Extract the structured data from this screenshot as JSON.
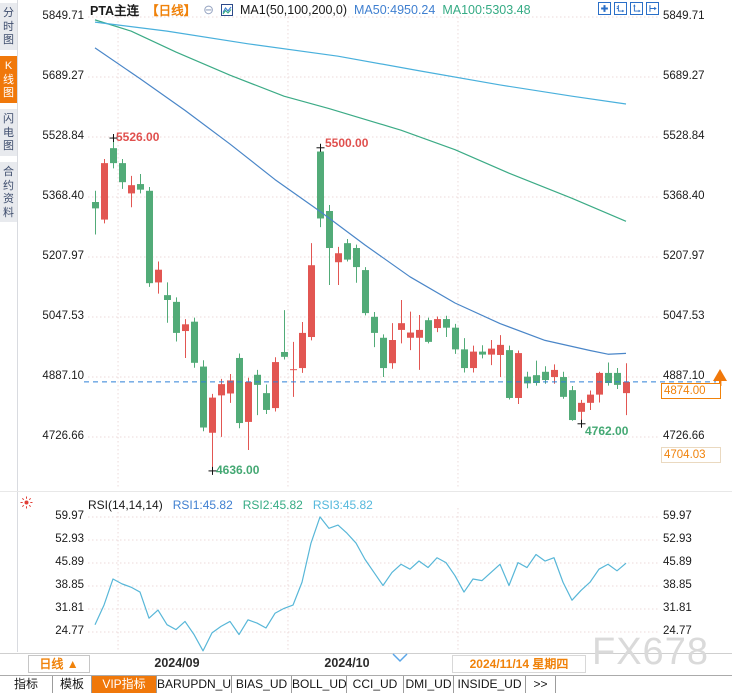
{
  "app": {
    "watermark": "FX678"
  },
  "header": {
    "symbol": "PTA主连",
    "period_tag": "【日线】",
    "collapse_icon": "⊖",
    "ma_group_label": "MA1(50,100,200,0)",
    "ma50_label": "MA50:4950.24",
    "ma100_label": "MA100:5303.48",
    "toolbar_icons": [
      "move-chart-icon",
      "axis-scale-icon",
      "axis-autofit-icon",
      "pan-right-icon"
    ]
  },
  "sidebar": {
    "items": [
      {
        "label": "分时图",
        "active": false
      },
      {
        "label": "K线图",
        "active": true
      },
      {
        "label": "闪电图",
        "active": false
      },
      {
        "label": "合约资料",
        "active": false
      }
    ]
  },
  "colors": {
    "accent_orange": "#f0780a",
    "up_candle": "#e25652",
    "down_candle": "#52ab78",
    "ma50": "#4a86c8",
    "ma100": "#3cab86",
    "ma200": "#49b0dc",
    "rsi_line": "#58b7d8",
    "price_line": "#2f80d8",
    "grid": "#ecdada",
    "annotation_red": "#e0504e",
    "annotation_green": "#44a873"
  },
  "main_chart": {
    "y_ticks": [
      "5849.71",
      "5689.27",
      "5528.84",
      "5368.40",
      "5207.97",
      "5047.53",
      "4887.10",
      "4726.66"
    ],
    "annotations": {
      "high1": "5526.00",
      "high2": "5500.00",
      "low1": "4636.00",
      "low2": "4762.00"
    },
    "price_tag": "4874.00",
    "secondary_tag": "4704.03"
  },
  "rsi_panel": {
    "title": "RSI(14,14,14)",
    "rsi1_label": "RSI1:45.82",
    "rsi2_label": "RSI2:45.82",
    "rsi3_label": "RSI3:45.82",
    "y_ticks": [
      "59.97",
      "52.93",
      "45.89",
      "38.85",
      "31.81",
      "24.77"
    ]
  },
  "bottom": {
    "period_selector": "日线 ▲",
    "date_labels": [
      "2024/09",
      "2024/10"
    ],
    "current_date": "2024/11/14 星期四",
    "tabs": [
      {
        "label": "指标",
        "active": false
      },
      {
        "label": "模板",
        "active": false
      },
      {
        "label": "VIP指标",
        "active": true
      },
      {
        "label": "BARUPDN_UD",
        "active": false
      },
      {
        "label": "BIAS_UD",
        "active": false
      },
      {
        "label": "BOLL_UD",
        "active": false
      },
      {
        "label": "CCI_UD",
        "active": false
      },
      {
        "label": "DMI_UD",
        "active": false
      },
      {
        "label": "INSIDE_UD",
        "active": false
      },
      {
        "label": ">>",
        "active": false
      }
    ]
  },
  "chart_data": [
    {
      "type": "candlestick",
      "title": "PTA主连 日线",
      "period": "日线",
      "y_ticks": [
        5849.71,
        5689.27,
        5528.84,
        5368.4,
        5207.97,
        5047.53,
        4887.1,
        4726.66
      ],
      "ylim": [
        4585,
        5850
      ],
      "current_price": 4874.0,
      "secondary_price": 4704.03,
      "month_boundary_indexes": [
        2.56,
        21.44,
        40.33
      ],
      "ohlc": [
        [
          5355,
          5385,
          5268,
          5338
        ],
        [
          5308,
          5470,
          5298,
          5459
        ],
        [
          5499,
          5526,
          5445,
          5459
        ],
        [
          5459,
          5470,
          5390,
          5408
        ],
        [
          5378,
          5425,
          5341,
          5400
        ],
        [
          5403,
          5430,
          5378,
          5388
        ],
        [
          5385,
          5395,
          5128,
          5138
        ],
        [
          5140,
          5196,
          5110,
          5174
        ],
        [
          5106,
          5140,
          5032,
          5093
        ],
        [
          5088,
          5100,
          4982,
          5005
        ],
        [
          5010,
          5042,
          4938,
          5028
        ],
        [
          5035,
          5046,
          4912,
          4925
        ],
        [
          4915,
          4932,
          4742,
          4752
        ],
        [
          4738,
          4842,
          4636,
          4832
        ],
        [
          4838,
          4882,
          4727,
          4868
        ],
        [
          4843,
          4895,
          4818,
          4878
        ],
        [
          4938,
          4950,
          4750,
          4764
        ],
        [
          4767,
          4885,
          4692,
          4874
        ],
        [
          4893,
          4906,
          4785,
          4866
        ],
        [
          4844,
          4867,
          4788,
          4799
        ],
        [
          4804,
          4940,
          4795,
          4927
        ],
        [
          4954,
          5066,
          4934,
          4941
        ],
        [
          4906,
          4981,
          4834,
          4908
        ],
        [
          4911,
          5034,
          4898,
          5005
        ],
        [
          4994,
          5245,
          4985,
          5186
        ],
        [
          5490,
          5500,
          5288,
          5311
        ],
        [
          5331,
          5347,
          5133,
          5232
        ],
        [
          5194,
          5235,
          5133,
          5218
        ],
        [
          5245,
          5256,
          5196,
          5201
        ],
        [
          5232,
          5241,
          5139,
          5181
        ],
        [
          5173,
          5181,
          5052,
          5058
        ],
        [
          5048,
          5061,
          4967,
          5005
        ],
        [
          4992,
          5001,
          4887,
          4911
        ],
        [
          4924,
          5031,
          4909,
          4986
        ],
        [
          5013,
          5093,
          4977,
          5031
        ],
        [
          4992,
          5062,
          4959,
          5006
        ],
        [
          4992,
          5053,
          4906,
          5013
        ],
        [
          5039,
          5046,
          4977,
          4981
        ],
        [
          5018,
          5049,
          5007,
          5042
        ],
        [
          5042,
          5051,
          4994,
          5019
        ],
        [
          5019,
          5029,
          4949,
          4961
        ],
        [
          4961,
          4991,
          4899,
          4911
        ],
        [
          4911,
          4971,
          4899,
          4955
        ],
        [
          4955,
          4972,
          4937,
          4947
        ],
        [
          4947,
          4986,
          4919,
          4963
        ],
        [
          4946,
          4999,
          4887,
          4973
        ],
        [
          4959,
          4971,
          4827,
          4831
        ],
        [
          4831,
          4958,
          4815,
          4951
        ],
        [
          4888,
          4901,
          4857,
          4870
        ],
        [
          4892,
          4931,
          4864,
          4871
        ],
        [
          4901,
          4916,
          4869,
          4879
        ],
        [
          4887,
          4921,
          4869,
          4906
        ],
        [
          4887,
          4901,
          4829,
          4834
        ],
        [
          4852,
          4863,
          4770,
          4772
        ],
        [
          4794,
          4826,
          4762,
          4818
        ],
        [
          4818,
          4851,
          4799,
          4840
        ],
        [
          4840,
          4901,
          4819,
          4898
        ],
        [
          4898,
          4926,
          4864,
          4871
        ],
        [
          4898,
          4911,
          4855,
          4866
        ],
        [
          4844,
          4924,
          4785,
          4874
        ]
      ],
      "marked_points": [
        {
          "index": 2,
          "kind": "high",
          "value": 5526.0
        },
        {
          "index": 13,
          "kind": "low",
          "value": 4636.0
        },
        {
          "index": 25,
          "kind": "high",
          "value": 5500.0
        },
        {
          "index": 54,
          "kind": "low",
          "value": 4762.0
        }
      ],
      "ma_series": [
        {
          "name": "MA50",
          "last": 4950.24,
          "points": [
            [
              0,
              5767
            ],
            [
              5,
              5685
            ],
            [
              10,
              5600
            ],
            [
              15,
              5510
            ],
            [
              20,
              5415
            ],
            [
              25,
              5330
            ],
            [
              30,
              5240
            ],
            [
              35,
              5155
            ],
            [
              40,
              5085
            ],
            [
              45,
              5030
            ],
            [
              50,
              4985
            ],
            [
              55,
              4958
            ],
            [
              57,
              4948
            ],
            [
              59,
              4950.24
            ]
          ]
        },
        {
          "name": "MA100",
          "last": 5303.48,
          "points": [
            [
              0,
              5842
            ],
            [
              4,
              5812
            ],
            [
              9,
              5756
            ],
            [
              15,
              5694
            ],
            [
              21,
              5638
            ],
            [
              26,
              5605
            ],
            [
              34,
              5547
            ],
            [
              40,
              5495
            ],
            [
              46,
              5432
            ],
            [
              53,
              5365
            ],
            [
              59,
              5303.48
            ]
          ]
        },
        {
          "name": "MA200",
          "last": 5617.0,
          "points": [
            [
              0,
              5836
            ],
            [
              8,
              5812
            ],
            [
              17,
              5778
            ],
            [
              27,
              5745
            ],
            [
              36,
              5706
            ],
            [
              45,
              5668
            ],
            [
              53,
              5638
            ],
            [
              59,
              5617
            ]
          ]
        }
      ]
    },
    {
      "type": "line",
      "name": "RSI(14,14,14)",
      "y_ticks": [
        59.97,
        52.93,
        45.89,
        38.85,
        31.81,
        24.77
      ],
      "last_values": {
        "rsi1": 45.82,
        "rsi2": 45.82,
        "rsi3": 45.82
      },
      "values": [
        27,
        33,
        41,
        39.5,
        38.5,
        37,
        29,
        31.5,
        27,
        25.5,
        28,
        24,
        19,
        24.5,
        26.5,
        28,
        24,
        28.5,
        27.5,
        26,
        30.5,
        32,
        33,
        40,
        52,
        60,
        56.5,
        57.5,
        55,
        52,
        47,
        43,
        39,
        43,
        45.5,
        44,
        46.5,
        44.5,
        47.5,
        46,
        42,
        37,
        41,
        40.5,
        43,
        45.5,
        39,
        46,
        44.5,
        48.5,
        46.5,
        47.5,
        40,
        34.5,
        37.5,
        40,
        44,
        45.5,
        43.5,
        45.82
      ]
    }
  ]
}
